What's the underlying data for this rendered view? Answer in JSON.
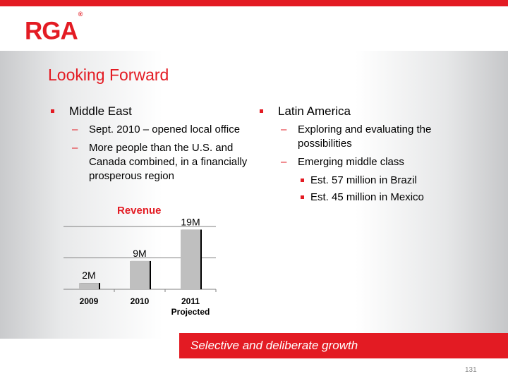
{
  "logo": {
    "text": "RGA",
    "registered": "®"
  },
  "title": "Looking Forward",
  "left_column": {
    "heading": "Middle East",
    "items": [
      "Sept. 2010 – opened local office",
      "More people than the U.S. and Canada combined, in a financially prosperous region"
    ]
  },
  "right_column": {
    "heading": "Latin America",
    "items": [
      "Exploring and evaluating the possibilities",
      "Emerging middle class"
    ],
    "subitems": [
      "Est. 57 million in Brazil",
      "Est. 45 million in Mexico"
    ]
  },
  "chart_data": {
    "type": "bar",
    "title": "Revenue",
    "categories": [
      "2009",
      "2010",
      "2011"
    ],
    "category_sublabels": [
      "",
      "",
      "Projected"
    ],
    "values": [
      2,
      9,
      19
    ],
    "data_labels": [
      "2M",
      "9M",
      "19M"
    ],
    "ylim": [
      0,
      20
    ],
    "grid": true,
    "bar_color": "#bfbfbf",
    "shadow_color": "#000000"
  },
  "banner": {
    "text": "Selective and deliberate growth"
  },
  "page_number": "131",
  "colors": {
    "accent": "#e31b23"
  }
}
